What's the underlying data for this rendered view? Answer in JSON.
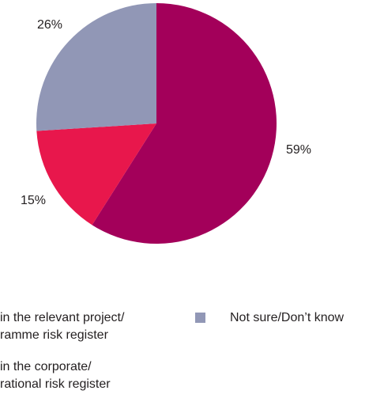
{
  "chart_data": {
    "type": "pie",
    "slices": [
      {
        "label": "Within the relevant project/ programme risk register",
        "value": 59,
        "display": "59%",
        "color": "#a3005a"
      },
      {
        "label": "Within the corporate/ operational risk register",
        "value": 15,
        "display": "15%",
        "color": "#e8174c"
      },
      {
        "label": "Not sure/Don't know",
        "value": 26,
        "display": "26%",
        "color": "#9197b6"
      }
    ],
    "legend": [
      {
        "text": "in the relevant project/\nramme risk register",
        "color": "#a3005a"
      },
      {
        "text": "Not sure/Don’t know",
        "color": "#9197b6"
      },
      {
        "text": "in the corporate/\nrational risk register",
        "color": "#e8174c"
      }
    ]
  }
}
